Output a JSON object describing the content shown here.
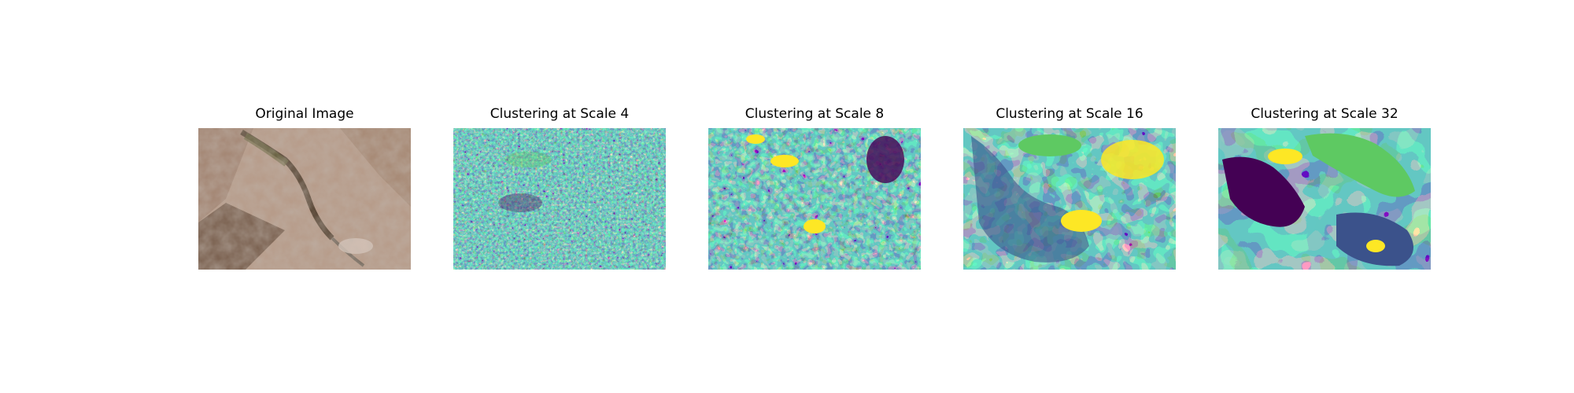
{
  "figure": {
    "panels": [
      {
        "title": "Original Image",
        "kind": "photo"
      },
      {
        "title": "Clustering at Scale 4",
        "kind": "clustering"
      },
      {
        "title": "Clustering at Scale 8",
        "kind": "clustering"
      },
      {
        "title": "Clustering at Scale 16",
        "kind": "clustering"
      },
      {
        "title": "Clustering at Scale 32",
        "kind": "clustering"
      }
    ],
    "colormap": [
      "#440154",
      "#3b528b",
      "#21918c",
      "#5ec962",
      "#fde725"
    ]
  }
}
